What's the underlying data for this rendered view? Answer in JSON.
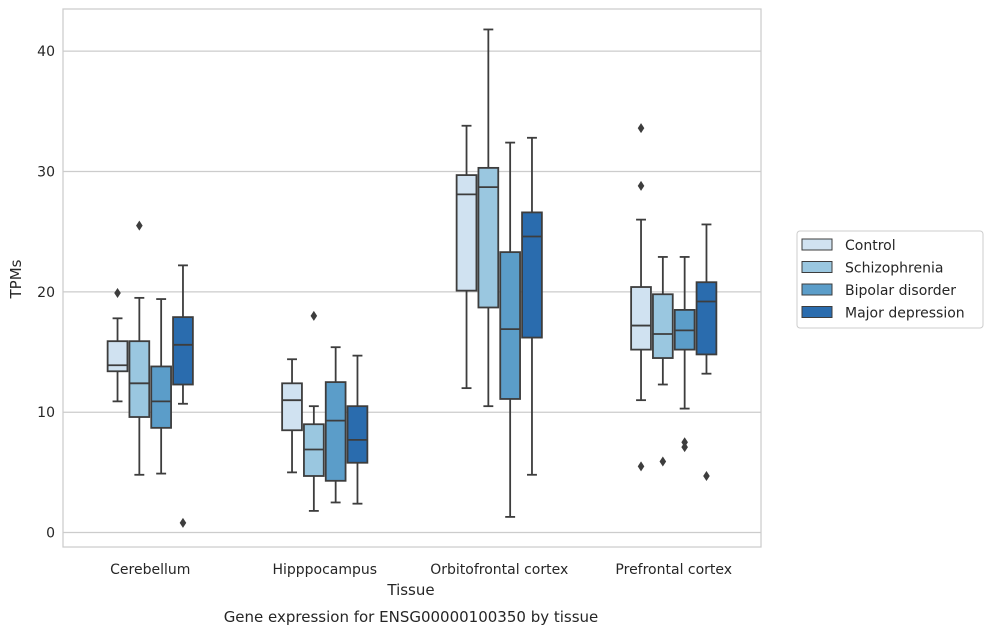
{
  "caption": "Gene expression for ENSG00000100350 by tissue",
  "chart_data": {
    "type": "box",
    "title": "",
    "xlabel": "Tissue",
    "ylabel": "TPMs",
    "ylim": [
      -1.2,
      43.5
    ],
    "yticks": [
      0,
      10,
      20,
      30,
      40
    ],
    "grid": "horizontal",
    "legend_position": "right",
    "categories": [
      "Cerebellum",
      "Hipppocampus",
      "Orbitofrontal cortex",
      "Prefrontal cortex"
    ],
    "series": [
      {
        "name": "Control",
        "color": "#d0e2f1",
        "boxes": [
          {
            "whislo": 10.9,
            "q1": 13.4,
            "med": 13.9,
            "q3": 15.9,
            "whishi": 17.8,
            "fliers": [
              19.9
            ]
          },
          {
            "whislo": 5.0,
            "q1": 8.5,
            "med": 11.0,
            "q3": 12.4,
            "whishi": 14.4,
            "fliers": []
          },
          {
            "whislo": 12.0,
            "q1": 20.1,
            "med": 28.1,
            "q3": 29.7,
            "whishi": 33.8,
            "fliers": []
          },
          {
            "whislo": 11.0,
            "q1": 15.2,
            "med": 17.2,
            "q3": 20.4,
            "whishi": 26.0,
            "fliers": [
              28.8,
              33.6,
              5.5
            ]
          }
        ]
      },
      {
        "name": "Schizophrenia",
        "color": "#9ac7e0",
        "boxes": [
          {
            "whislo": 4.8,
            "q1": 9.6,
            "med": 12.4,
            "q3": 15.9,
            "whishi": 19.5,
            "fliers": [
              25.5
            ]
          },
          {
            "whislo": 1.8,
            "q1": 4.7,
            "med": 6.9,
            "q3": 9.0,
            "whishi": 10.5,
            "fliers": [
              18.0
            ]
          },
          {
            "whislo": 10.5,
            "q1": 18.7,
            "med": 28.7,
            "q3": 30.3,
            "whishi": 41.8,
            "fliers": []
          },
          {
            "whislo": 12.3,
            "q1": 14.5,
            "med": 16.5,
            "q3": 19.8,
            "whishi": 22.9,
            "fliers": [
              5.9
            ]
          }
        ]
      },
      {
        "name": "Bipolar disorder",
        "color": "#5b9dc9",
        "boxes": [
          {
            "whislo": 4.9,
            "q1": 8.7,
            "med": 10.9,
            "q3": 13.8,
            "whishi": 19.4,
            "fliers": []
          },
          {
            "whislo": 2.5,
            "q1": 4.3,
            "med": 9.3,
            "q3": 12.5,
            "whishi": 15.4,
            "fliers": []
          },
          {
            "whislo": 1.3,
            "q1": 11.1,
            "med": 16.9,
            "q3": 23.3,
            "whishi": 32.4,
            "fliers": []
          },
          {
            "whislo": 10.3,
            "q1": 15.2,
            "med": 16.8,
            "q3": 18.5,
            "whishi": 22.9,
            "fliers": [
              7.5,
              7.1
            ]
          }
        ]
      },
      {
        "name": "Major depression",
        "color": "#2a6cae",
        "boxes": [
          {
            "whislo": 10.7,
            "q1": 12.3,
            "med": 15.6,
            "q3": 17.9,
            "whishi": 22.2,
            "fliers": [
              0.8
            ]
          },
          {
            "whislo": 2.4,
            "q1": 5.8,
            "med": 7.7,
            "q3": 10.5,
            "whishi": 14.7,
            "fliers": []
          },
          {
            "whislo": 4.8,
            "q1": 16.2,
            "med": 24.6,
            "q3": 26.6,
            "whishi": 32.8,
            "fliers": []
          },
          {
            "whislo": 13.2,
            "q1": 14.8,
            "med": 19.2,
            "q3": 20.8,
            "whishi": 25.6,
            "fliers": [
              4.7
            ]
          }
        ]
      }
    ]
  }
}
